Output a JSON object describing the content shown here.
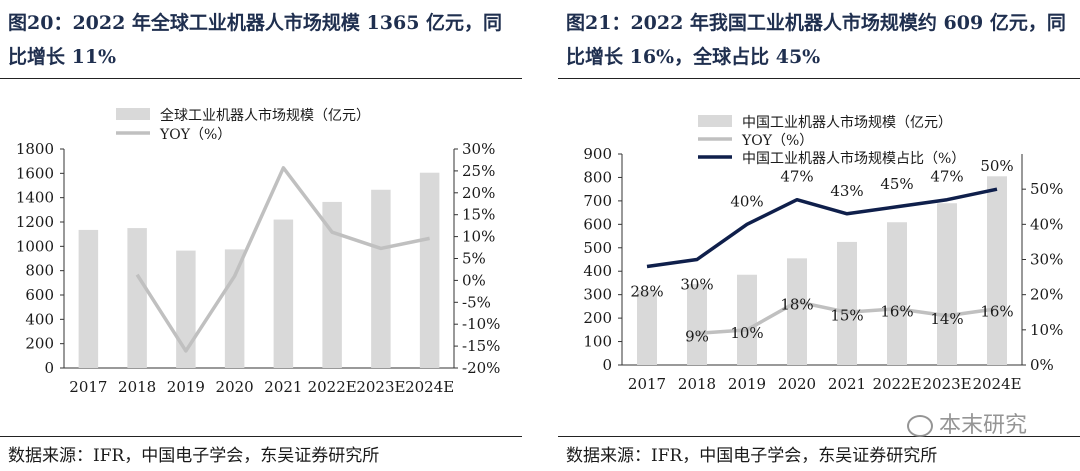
{
  "left": {
    "title": "图20：2022 年全球工业机器人市场规模 1365 亿元，同比增长 11%",
    "source": "数据来源：IFR，中国电子学会，东吴证券研究所"
  },
  "right": {
    "title": "图21：2022 年我国工业机器人市场规模约 609 亿元，同比增长 16%，全球占比 45%",
    "source": "数据来源：IFR，中国电子学会，东吴证券研究所"
  },
  "watermark": "本末研究",
  "colors": {
    "bar": "#d9d9d9",
    "yoy_line": "#c0c0c0",
    "share_line": "#0f1f4b",
    "title": "#1f2f4f"
  },
  "chart_data": [
    {
      "type": "bar",
      "categories": [
        "2017",
        "2018",
        "2019",
        "2020",
        "2021",
        "2022E",
        "2023E",
        "2024E"
      ],
      "series": [
        {
          "name": "全球工业机器人市场规模（亿元）",
          "type": "bar",
          "axis": "left",
          "values": [
            1135,
            1150,
            965,
            975,
            1220,
            1365,
            1465,
            1605
          ]
        },
        {
          "name": "YOY（%）",
          "type": "line",
          "axis": "right",
          "values": [
            null,
            1.3,
            -16.1,
            1.0,
            25.7,
            11.0,
            7.3,
            9.6
          ]
        }
      ],
      "ylim_left": [
        0,
        1800
      ],
      "yticks_left": [
        "0",
        "200",
        "400",
        "600",
        "800",
        "1000",
        "1200",
        "1400",
        "1600",
        "1800"
      ],
      "ylim_right": [
        -20,
        30
      ],
      "yticks_right": [
        "-20%",
        "-15%",
        "-10%",
        "-5%",
        "0%",
        "5%",
        "10%",
        "15%",
        "20%",
        "25%",
        "30%"
      ],
      "legend_position": "top"
    },
    {
      "type": "bar",
      "categories": [
        "2017",
        "2018",
        "2019",
        "2020",
        "2021",
        "2022E",
        "2023E",
        "2024E"
      ],
      "series": [
        {
          "name": "中国工业机器人市场规模（亿元）",
          "type": "bar",
          "axis": "left",
          "values": [
            320,
            345,
            385,
            455,
            525,
            609,
            690,
            805
          ]
        },
        {
          "name": "YOY（%）",
          "type": "line",
          "axis": "right",
          "values": [
            null,
            9,
            10,
            18,
            15,
            16,
            14,
            16
          ],
          "labels": [
            "",
            "9%",
            "10%",
            "18%",
            "15%",
            "16%",
            "14%",
            "16%"
          ]
        },
        {
          "name": "中国工业机器人市场规模占比（%）",
          "type": "line",
          "axis": "right",
          "values": [
            28,
            30,
            40,
            47,
            43,
            45,
            47,
            50
          ],
          "labels": [
            "28%",
            "30%",
            "40%",
            "47%",
            "43%",
            "45%",
            "47%",
            "50%"
          ]
        }
      ],
      "ylim_left": [
        0,
        900
      ],
      "yticks_left": [
        "0",
        "100",
        "200",
        "300",
        "400",
        "500",
        "600",
        "700",
        "800",
        "900"
      ],
      "ylim_right": [
        0,
        60
      ],
      "yticks_right": [
        "0%",
        "10%",
        "20%",
        "30%",
        "40%",
        "50%"
      ],
      "legend_position": "top"
    }
  ]
}
